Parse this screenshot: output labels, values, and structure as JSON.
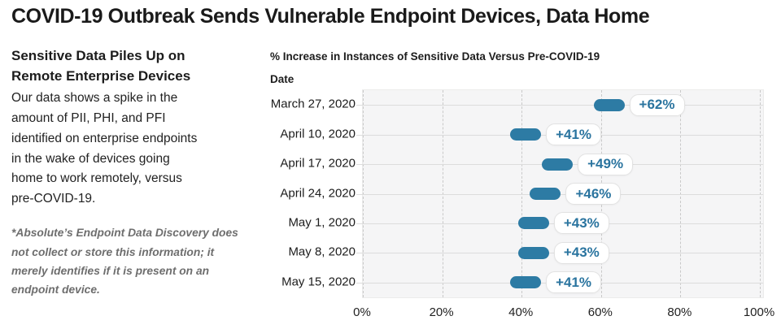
{
  "header": {
    "title": "COVID-19 Outbreak Sends Vulnerable Endpoint Devices, Data Home"
  },
  "sidebar": {
    "heading": "Sensitive Data Piles Up on\nRemote Enterprise Devices",
    "body": "Our data shows a spike in the\namount of PII, PHI, and PFI\nidentified on enterprise endpoints\nin the wake of devices going\nhome to work remotely, versus\npre-COVID-19.",
    "footnote": "*Absolute’s Endpoint Data Discovery does\nnot collect or store this information; it\nmerely identifies if it is present on an\nendpoint device."
  },
  "chart_data": {
    "type": "bar",
    "orientation": "horizontal",
    "title": "% Increase in Instances of Sensitive Data Versus Pre-COVID-19",
    "category_axis_title": "Date",
    "categories": [
      "March 27, 2020",
      "April 10, 2020",
      "April 17, 2020",
      "April 24, 2020",
      "May 1, 2020",
      "May 8, 2020",
      "May 15, 2020"
    ],
    "values": [
      62,
      41,
      49,
      46,
      43,
      43,
      41
    ],
    "value_labels": [
      "+62%",
      "+41%",
      "+49%",
      "+46%",
      "+43%",
      "+43%",
      "+41%"
    ],
    "x_ticks": [
      "0%",
      "20%",
      "40%",
      "60%",
      "80%",
      "100%"
    ],
    "xlim": [
      0,
      100
    ],
    "grid": "vertical-dashed",
    "legend": "none"
  },
  "colors": {
    "accent_blue": "#2d7ba4",
    "badge_text_blue": "#2a749f",
    "title_text": "#1a1a1a",
    "body_text": "#222222",
    "footnote_text": "#6e6e6e",
    "plot_background": "#f5f5f6",
    "gridline": "#c9c9c9",
    "row_line": "#dcdcdc",
    "badge_border": "#e2e2e2",
    "badge_background": "#ffffff"
  }
}
